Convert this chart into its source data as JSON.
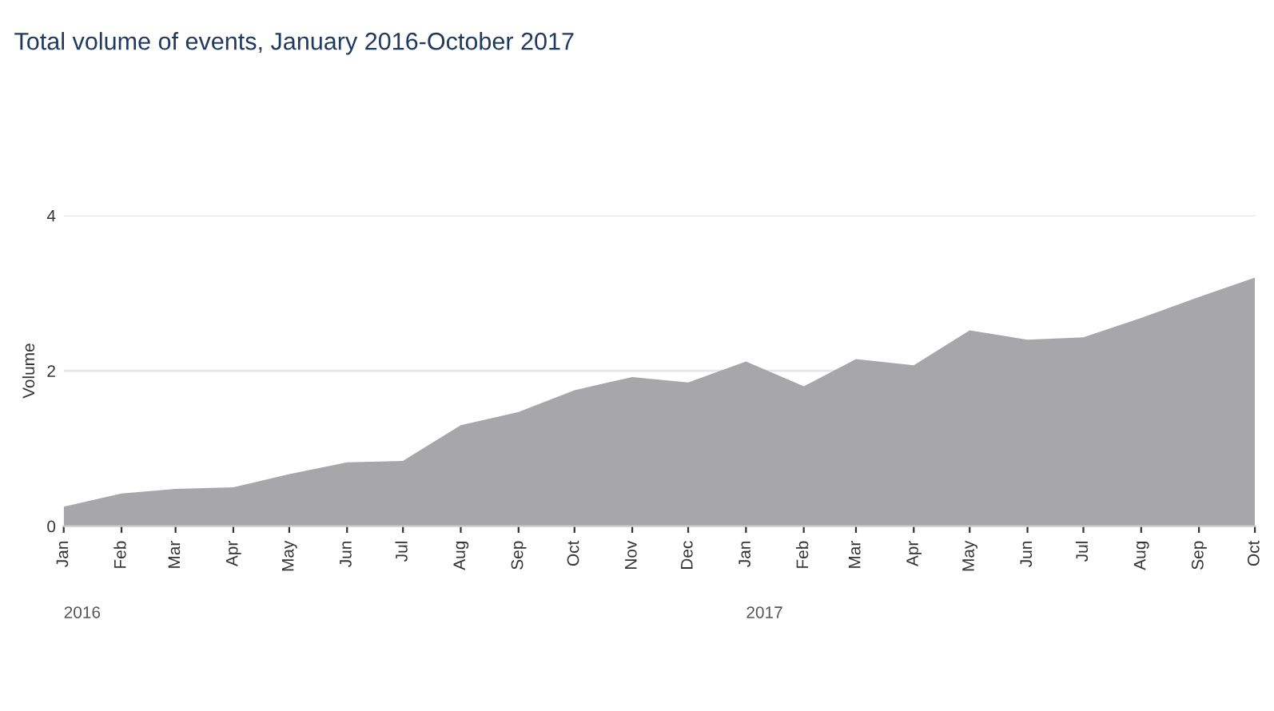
{
  "chart_data": {
    "type": "area",
    "title": "Total volume of events, January 2016-October 2017",
    "ylabel": "Volume",
    "x": [
      "2016-01",
      "2016-02",
      "2016-03",
      "2016-04",
      "2016-05",
      "2016-06",
      "2016-07",
      "2016-08",
      "2016-09",
      "2016-10",
      "2016-11",
      "2016-12",
      "2017-01",
      "2017-02",
      "2017-03",
      "2017-04",
      "2017-05",
      "2017-06",
      "2017-07",
      "2017-08",
      "2017-09",
      "2017-10"
    ],
    "values": [
      0.25,
      0.42,
      0.48,
      0.5,
      0.67,
      0.82,
      0.84,
      1.3,
      1.47,
      1.75,
      1.92,
      1.85,
      2.12,
      1.8,
      2.15,
      2.07,
      2.52,
      2.4,
      2.43,
      2.68,
      2.95,
      3.2
    ],
    "color": "#a7a7a9",
    "xlim": [
      "2016-01",
      "2017-10"
    ],
    "xticks": [
      {
        "value": "2016-01",
        "label": "Jan"
      },
      {
        "value": "2016-02",
        "label": "Feb"
      },
      {
        "value": "2016-03",
        "label": "Mar"
      },
      {
        "value": "2016-04",
        "label": "Apr"
      },
      {
        "value": "2016-05",
        "label": "May"
      },
      {
        "value": "2016-06",
        "label": "Jun"
      },
      {
        "value": "2016-07",
        "label": "Jul"
      },
      {
        "value": "2016-08",
        "label": "Aug"
      },
      {
        "value": "2016-09",
        "label": "Sep"
      },
      {
        "value": "2016-10",
        "label": "Oct"
      },
      {
        "value": "2016-11",
        "label": "Nov"
      },
      {
        "value": "2016-12",
        "label": "Dec"
      },
      {
        "value": "2017-01",
        "label": "Jan"
      },
      {
        "value": "2017-02",
        "label": "Feb"
      },
      {
        "value": "2017-03",
        "label": "Mar"
      },
      {
        "value": "2017-04",
        "label": "Apr"
      },
      {
        "value": "2017-05",
        "label": "May"
      },
      {
        "value": "2017-06",
        "label": "Jun"
      },
      {
        "value": "2017-07",
        "label": "Jul"
      },
      {
        "value": "2017-08",
        "label": "Aug"
      },
      {
        "value": "2017-09",
        "label": "Sep"
      },
      {
        "value": "2017-10",
        "label": "Oct"
      }
    ],
    "ylim": [
      0,
      4
    ],
    "yticks": [
      0,
      2,
      4
    ],
    "grid": "y",
    "legend": false,
    "annotations": [
      "2016",
      "2017"
    ]
  }
}
